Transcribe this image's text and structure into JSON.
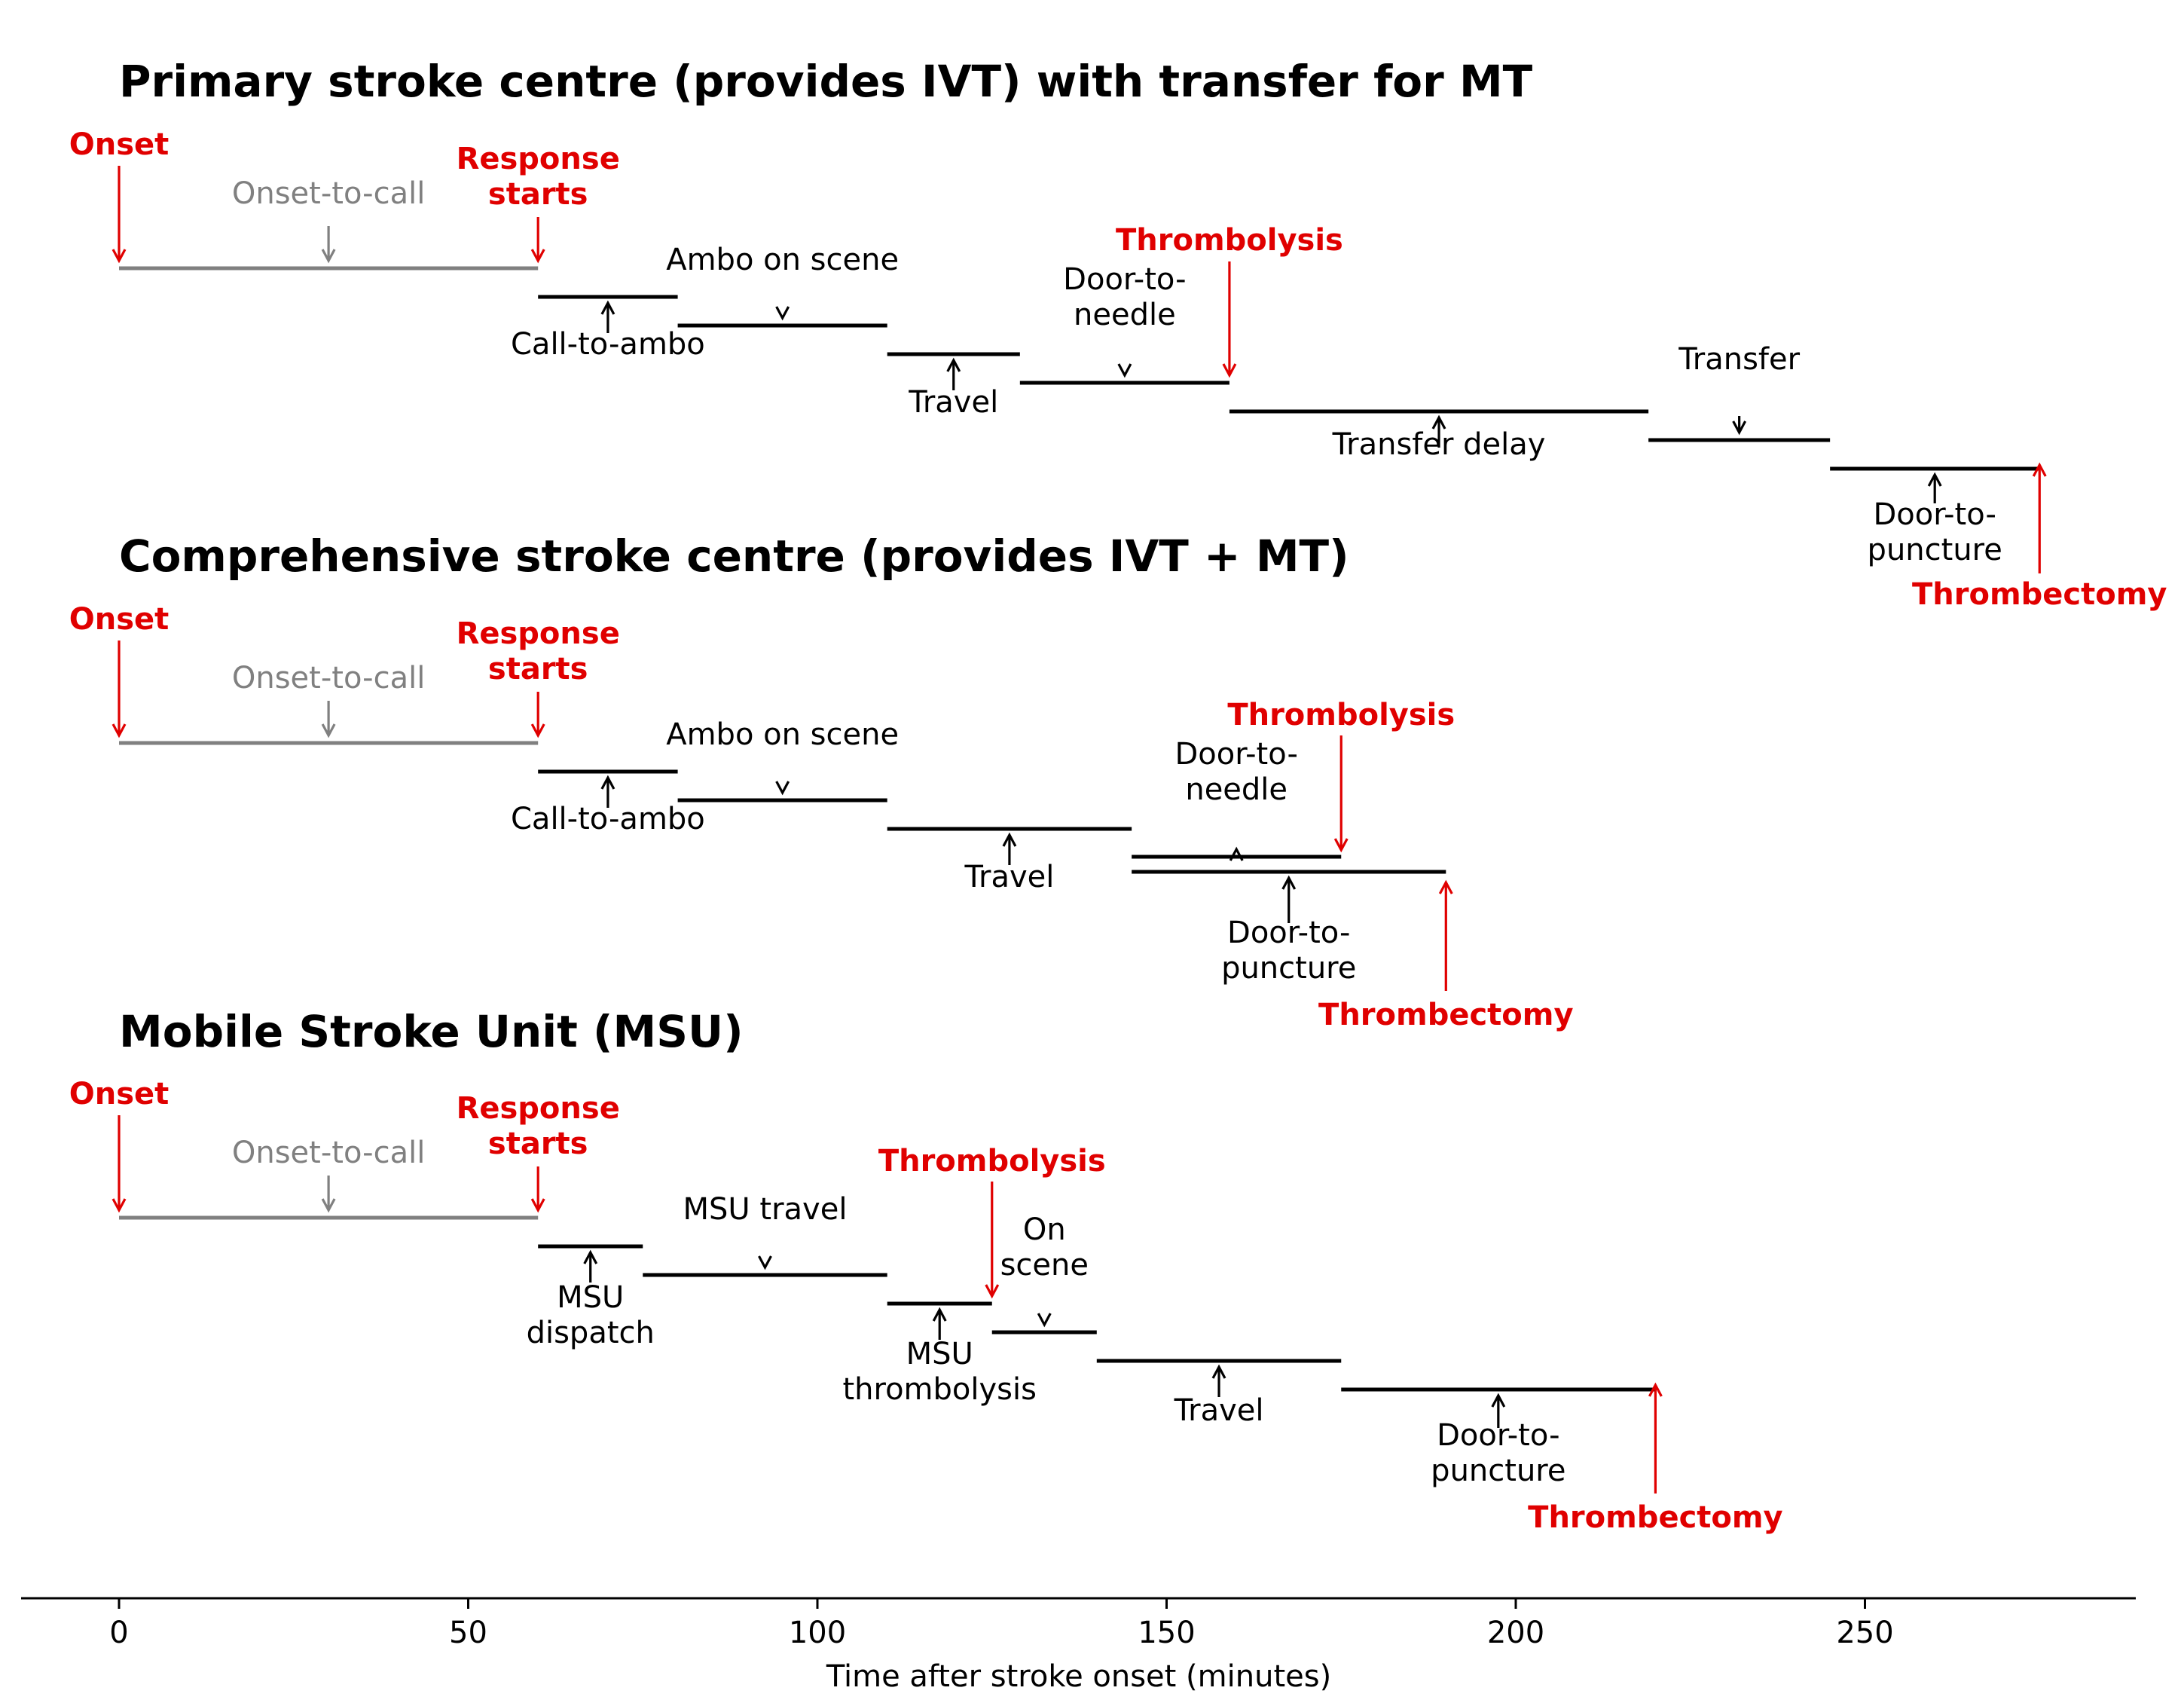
{
  "colors": {
    "main": "#000000",
    "muted": "#808080",
    "milestone": "#e00000"
  },
  "chart_data": {
    "type": "timeline",
    "xlabel": "Time after stroke onset (minutes)",
    "xlim": [
      -14,
      289
    ],
    "ticks": [
      0,
      50,
      100,
      150,
      200,
      250
    ],
    "panels": [
      {
        "title": "Primary stroke centre (provides IVT) with transfer for MT",
        "segments": [
          {
            "label": "Onset-to-call",
            "start": 0,
            "end": 60,
            "muted": true
          },
          {
            "label": "Call-to-ambo",
            "start": 60,
            "end": 80
          },
          {
            "label": "Ambo on scene",
            "start": 80,
            "end": 110
          },
          {
            "label": "Travel",
            "start": 110,
            "end": 129
          },
          {
            "label": "Door-to-\nneedle",
            "start": 129,
            "end": 159
          },
          {
            "label": "Transfer delay",
            "start": 159,
            "end": 219
          },
          {
            "label": "Transfer",
            "start": 219,
            "end": 245
          },
          {
            "label": "Door-to-\npuncture",
            "start": 245,
            "end": 275
          }
        ],
        "milestones": [
          {
            "label": "Onset",
            "time": 0
          },
          {
            "label": "Response\nstarts",
            "time": 60
          },
          {
            "label": "Thrombolysis",
            "time": 159
          },
          {
            "label": "Thrombectomy",
            "time": 275
          }
        ]
      },
      {
        "title": "Comprehensive stroke centre (provides IVT + MT)",
        "segments": [
          {
            "label": "Onset-to-call",
            "start": 0,
            "end": 60,
            "muted": true
          },
          {
            "label": "Call-to-ambo",
            "start": 60,
            "end": 80
          },
          {
            "label": "Ambo on scene",
            "start": 80,
            "end": 110
          },
          {
            "label": "Travel",
            "start": 110,
            "end": 145
          },
          {
            "label": "Door-to-\nneedle",
            "start": 145,
            "end": 175
          },
          {
            "label": "Door-to-\npuncture",
            "start": 145,
            "end": 190
          }
        ],
        "milestones": [
          {
            "label": "Onset",
            "time": 0
          },
          {
            "label": "Response\nstarts",
            "time": 60
          },
          {
            "label": "Thrombolysis",
            "time": 175
          },
          {
            "label": "Thrombectomy",
            "time": 190
          }
        ]
      },
      {
        "title": "Mobile Stroke Unit (MSU)",
        "segments": [
          {
            "label": "Onset-to-call",
            "start": 0,
            "end": 60,
            "muted": true
          },
          {
            "label": "MSU\ndispatch",
            "start": 60,
            "end": 75
          },
          {
            "label": "MSU travel",
            "start": 75,
            "end": 110
          },
          {
            "label": "MSU\nthrombolysis",
            "start": 110,
            "end": 125
          },
          {
            "label": "On\nscene",
            "start": 125,
            "end": 140
          },
          {
            "label": "Travel",
            "start": 140,
            "end": 175
          },
          {
            "label": "Door-to-\npuncture",
            "start": 175,
            "end": 220
          }
        ],
        "milestones": [
          {
            "label": "Onset",
            "time": 0
          },
          {
            "label": "Response\nstarts",
            "time": 60
          },
          {
            "label": "Thrombolysis",
            "time": 125
          },
          {
            "label": "Thrombectomy",
            "time": 220
          }
        ]
      }
    ]
  }
}
